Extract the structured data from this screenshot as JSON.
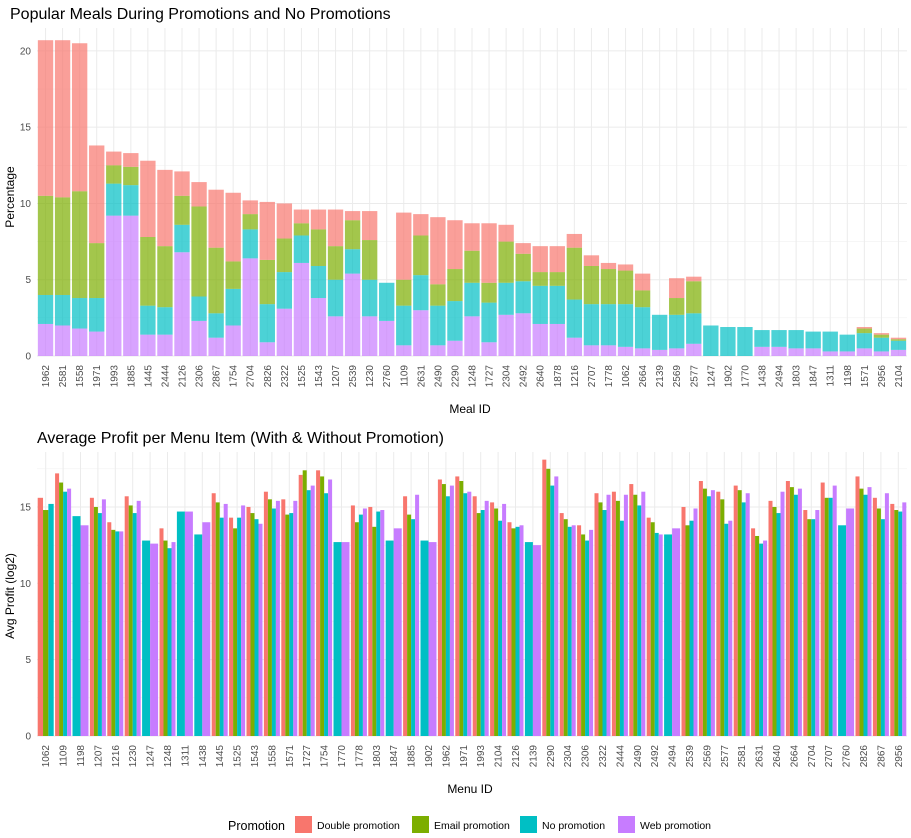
{
  "colors": {
    "Double promotion": "#F8766D",
    "Email promotion": "#7CAE00",
    "No promotion": "#00BFC4",
    "Web promotion": "#C77CFF",
    "grid": "#ebebeb"
  },
  "legend": {
    "title": "Promotion",
    "items": [
      "Double promotion",
      "Email promotion",
      "No promotion",
      "Web promotion"
    ]
  },
  "chart_data": [
    {
      "type": "bar",
      "stacked": true,
      "title": "Popular Meals During Promotions and No Promotions",
      "xlabel": "Meal ID",
      "ylabel": "Percentage",
      "ylim": [
        0,
        21.5
      ],
      "yticks": [
        0,
        5,
        10,
        15,
        20
      ],
      "grid": true,
      "categories": [
        "1962",
        "2581",
        "1558",
        "1971",
        "1993",
        "1885",
        "1445",
        "2444",
        "2126",
        "2306",
        "2867",
        "1754",
        "2704",
        "2826",
        "2322",
        "1525",
        "1543",
        "1207",
        "2539",
        "1230",
        "2760",
        "1109",
        "2631",
        "2490",
        "2290",
        "1248",
        "1727",
        "2304",
        "2492",
        "2640",
        "1878",
        "1216",
        "2707",
        "1778",
        "1062",
        "2664",
        "2139",
        "2569",
        "2577",
        "1247",
        "1902",
        "1770",
        "1438",
        "2494",
        "1803",
        "1847",
        "1311",
        "1198",
        "1571",
        "2956",
        "2104"
      ],
      "series": [
        {
          "name": "Web promotion",
          "values": [
            2.1,
            2.0,
            1.8,
            1.6,
            9.2,
            9.2,
            1.4,
            1.4,
            6.8,
            2.3,
            1.2,
            2.0,
            6.4,
            0.9,
            3.1,
            6.1,
            3.8,
            2.6,
            5.4,
            2.6,
            2.3,
            0.7,
            3.0,
            0.7,
            1.0,
            2.6,
            0.9,
            2.7,
            2.8,
            2.1,
            2.1,
            1.2,
            0.7,
            0.7,
            0.6,
            0.5,
            0.4,
            0.5,
            0.8,
            0,
            0,
            0,
            0.6,
            0.6,
            0.5,
            0.5,
            0.3,
            0.3,
            0.5,
            0.3,
            0.4
          ]
        },
        {
          "name": "No promotion",
          "values": [
            1.9,
            2.0,
            2.0,
            2.2,
            2.1,
            2.0,
            1.9,
            1.8,
            1.8,
            1.6,
            1.6,
            2.4,
            1.9,
            2.5,
            2.4,
            1.8,
            2.1,
            2.4,
            1.6,
            2.4,
            2.5,
            2.6,
            2.3,
            2.6,
            2.6,
            2.2,
            2.6,
            2.1,
            2.1,
            2.5,
            2.5,
            2.5,
            2.7,
            2.7,
            2.8,
            2.7,
            2.3,
            2.2,
            2.0,
            2.0,
            1.9,
            1.9,
            1.1,
            1.1,
            1.2,
            1.1,
            1.3,
            1.1,
            1.0,
            0.9,
            0.6
          ]
        },
        {
          "name": "Email promotion",
          "values": [
            6.5,
            6.4,
            7.0,
            3.6,
            1.2,
            1.2,
            4.5,
            4.0,
            1.9,
            5.9,
            4.3,
            1.8,
            1.0,
            2.9,
            2.2,
            0.8,
            2.4,
            2.2,
            1.9,
            2.6,
            0,
            1.7,
            2.6,
            1.4,
            2.1,
            2.1,
            1.3,
            2.7,
            1.8,
            0.9,
            0.9,
            3.4,
            2.5,
            2.3,
            2.2,
            1.1,
            0,
            1.1,
            2.1,
            0,
            0,
            0,
            0,
            0,
            0,
            0,
            0,
            0,
            0.3,
            0.2,
            0.1
          ]
        },
        {
          "name": "Double promotion",
          "values": [
            10.2,
            10.3,
            9.7,
            6.4,
            0.9,
            0.9,
            5.0,
            5.0,
            1.6,
            1.6,
            3.8,
            4.5,
            0.9,
            3.8,
            2.3,
            0.9,
            1.3,
            2.4,
            0.6,
            1.9,
            0,
            4.4,
            1.4,
            4.4,
            3.2,
            1.8,
            3.9,
            1.1,
            0.7,
            1.7,
            1.7,
            0.9,
            0.7,
            0.4,
            0.4,
            1.1,
            0,
            1.3,
            0.3,
            0,
            0,
            0,
            0,
            0,
            0,
            0,
            0,
            0,
            0.1,
            0.1,
            0.1
          ]
        }
      ]
    },
    {
      "type": "bar",
      "grouped": true,
      "title": "Average Profit per Menu Item (With & Without Promotion)",
      "xlabel": "Menu ID",
      "ylabel": "Avg Profit (log2)",
      "ylim": [
        0,
        18.6
      ],
      "yticks": [
        0,
        5,
        10,
        15
      ],
      "grid": true,
      "categories": [
        "1062",
        "1109",
        "1198",
        "1207",
        "1216",
        "1230",
        "1247",
        "1248",
        "1311",
        "1438",
        "1445",
        "1525",
        "1543",
        "1558",
        "1571",
        "1727",
        "1754",
        "1770",
        "1778",
        "1803",
        "1847",
        "1885",
        "1902",
        "1962",
        "1971",
        "1993",
        "2104",
        "2126",
        "2139",
        "2290",
        "2304",
        "2306",
        "2322",
        "2444",
        "2490",
        "2492",
        "2494",
        "2539",
        "2569",
        "2577",
        "2581",
        "2631",
        "2640",
        "2664",
        "2704",
        "2707",
        "2760",
        "2826",
        "2867",
        "2956"
      ],
      "series": [
        {
          "name": "Double promotion",
          "values": [
            15.6,
            17.2,
            null,
            15.6,
            14.0,
            15.7,
            null,
            13.6,
            null,
            null,
            15.9,
            14.3,
            15.0,
            16.0,
            15.5,
            17.1,
            17.4,
            null,
            15.1,
            15.0,
            null,
            15.7,
            null,
            16.8,
            17.0,
            15.7,
            15.3,
            14.0,
            null,
            18.1,
            14.6,
            13.8,
            15.9,
            16.0,
            16.5,
            14.3,
            null,
            15.0,
            16.7,
            16.0,
            16.4,
            13.6,
            15.4,
            16.7,
            14.8,
            16.6,
            null,
            17.0,
            15.6,
            15.2
          ]
        },
        {
          "name": "Email promotion",
          "values": [
            14.8,
            16.6,
            null,
            15.0,
            13.5,
            15.1,
            null,
            12.8,
            null,
            null,
            15.3,
            13.6,
            14.6,
            15.5,
            14.5,
            17.4,
            17.0,
            null,
            14.0,
            13.7,
            null,
            14.5,
            null,
            16.5,
            16.7,
            14.6,
            14.9,
            13.6,
            null,
            17.5,
            14.2,
            13.2,
            15.3,
            15.4,
            15.8,
            14.0,
            null,
            13.8,
            16.2,
            15.5,
            16.1,
            13.1,
            15.0,
            16.3,
            14.2,
            15.6,
            null,
            16.2,
            14.9,
            14.8
          ]
        },
        {
          "name": "No promotion",
          "values": [
            15.2,
            16.0,
            14.4,
            14.6,
            13.4,
            14.6,
            12.8,
            12.3,
            14.7,
            13.2,
            14.3,
            14.3,
            14.2,
            14.9,
            14.6,
            16.1,
            15.9,
            12.7,
            14.5,
            14.7,
            12.8,
            14.2,
            12.8,
            15.7,
            15.9,
            14.8,
            14.1,
            13.7,
            12.7,
            16.4,
            13.7,
            12.8,
            14.8,
            14.1,
            15.1,
            13.3,
            13.2,
            14.1,
            15.7,
            13.9,
            15.3,
            12.6,
            14.6,
            15.8,
            14.2,
            15.6,
            13.8,
            15.8,
            14.2,
            14.7
          ]
        },
        {
          "name": "Web promotion",
          "values": [
            null,
            16.2,
            13.8,
            15.5,
            13.4,
            15.4,
            12.6,
            12.7,
            14.7,
            14.0,
            15.2,
            15.1,
            13.9,
            15.4,
            15.4,
            16.4,
            16.8,
            12.7,
            14.9,
            14.8,
            13.6,
            15.8,
            12.7,
            16.4,
            16.0,
            15.4,
            15.2,
            13.8,
            12.5,
            17.0,
            13.8,
            13.5,
            15.8,
            15.8,
            16.0,
            13.2,
            13.6,
            14.9,
            16.1,
            14.1,
            15.9,
            12.8,
            16.0,
            16.2,
            14.8,
            16.4,
            14.9,
            16.3,
            15.9,
            15.3
          ]
        }
      ]
    }
  ]
}
